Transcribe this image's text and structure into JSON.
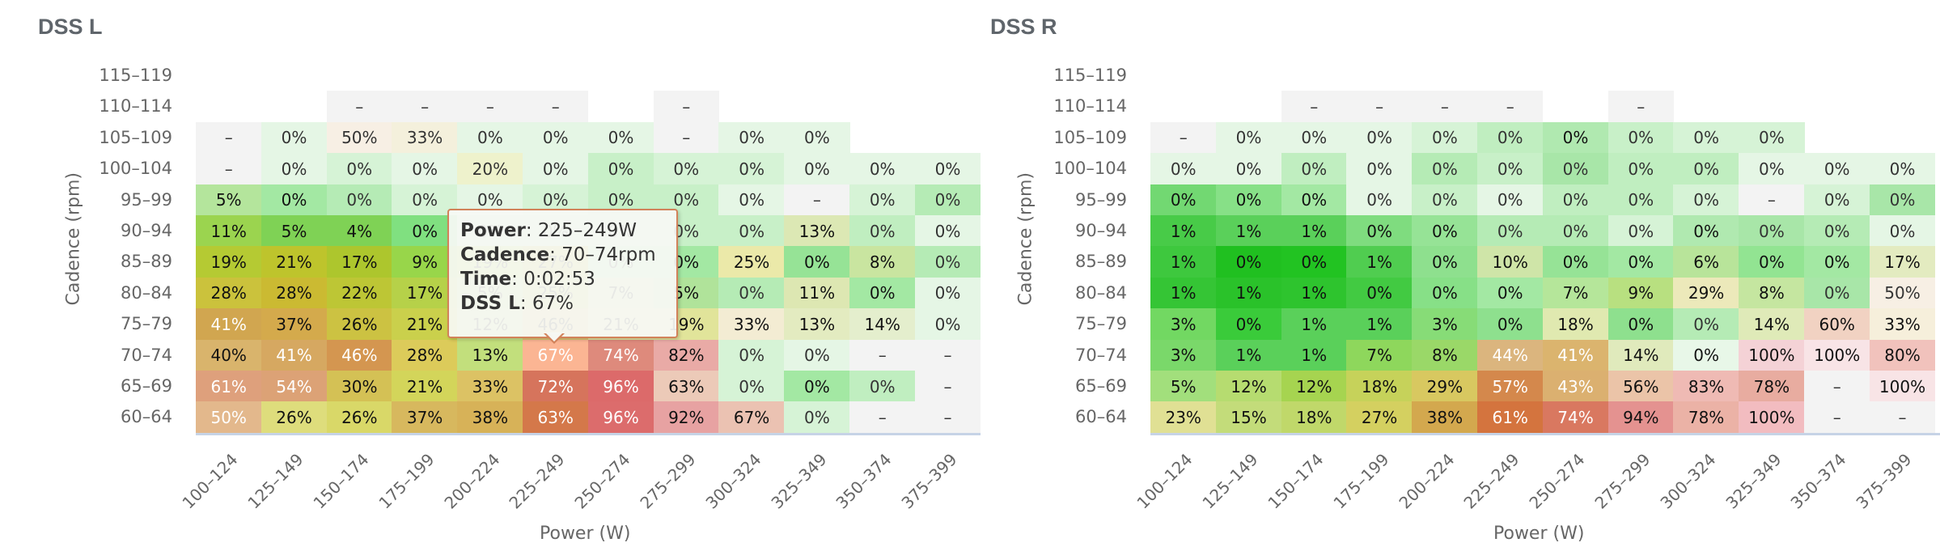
{
  "chart_data": [
    {
      "type": "heatmap",
      "title": "DSS L",
      "xlabel": "Power (W)",
      "ylabel": "Cadence (rpm)",
      "x_categories": [
        "100–124",
        "125–149",
        "150–174",
        "175–199",
        "200–224",
        "225–249",
        "250–274",
        "275–299",
        "300–324",
        "325–349",
        "350–374",
        "375–399"
      ],
      "y_categories": [
        "115–119",
        "110–114",
        "105–109",
        "100–104",
        "95–99",
        "90–94",
        "85–89",
        "80–84",
        "75–79",
        "70–74",
        "65–69",
        "60–64"
      ],
      "values": [
        [
          null,
          null,
          null,
          null,
          null,
          null,
          null,
          null,
          null,
          null,
          null,
          null
        ],
        [
          null,
          null,
          "–",
          "–",
          "–",
          "–",
          null,
          "–",
          null,
          null,
          null,
          null
        ],
        [
          "–",
          "0%",
          "50%",
          "33%",
          "0%",
          "0%",
          "0%",
          "–",
          "0%",
          "0%",
          null,
          null
        ],
        [
          "–",
          "0%",
          "0%",
          "0%",
          "20%",
          "0%",
          "0%",
          "0%",
          "0%",
          "0%",
          "0%",
          "0%"
        ],
        [
          "5%",
          "0%",
          "0%",
          "0%",
          "0%",
          "0%",
          "0%",
          "0%",
          "0%",
          "–",
          "0%",
          "0%"
        ],
        [
          "11%",
          "5%",
          "4%",
          "0%",
          "0%",
          "0%",
          "0%",
          "0%",
          "0%",
          "13%",
          "0%",
          "0%"
        ],
        [
          "19%",
          "21%",
          "17%",
          "9%",
          "19%",
          "27%",
          "0%",
          "0%",
          "25%",
          "0%",
          "8%",
          "0%"
        ],
        [
          "28%",
          "28%",
          "22%",
          "17%",
          "5%",
          "25%",
          "7%",
          "5%",
          "0%",
          "11%",
          "0%",
          "0%"
        ],
        [
          "41%",
          "37%",
          "26%",
          "21%",
          "12%",
          "46%",
          "21%",
          "19%",
          "33%",
          "13%",
          "14%",
          "0%"
        ],
        [
          "40%",
          "41%",
          "46%",
          "28%",
          "13%",
          "67%",
          "74%",
          "82%",
          "0%",
          "0%",
          "–",
          "–"
        ],
        [
          "61%",
          "54%",
          "30%",
          "21%",
          "33%",
          "72%",
          "96%",
          "63%",
          "0%",
          "0%",
          "0%",
          "–"
        ],
        [
          "50%",
          "26%",
          "26%",
          "37%",
          "38%",
          "63%",
          "96%",
          "92%",
          "67%",
          "0%",
          "–",
          "–"
        ]
      ],
      "colors": [
        [
          null,
          null,
          null,
          null,
          null,
          null,
          null,
          null,
          null,
          null,
          null,
          null
        ],
        [
          null,
          null,
          "#f3f3f3",
          "#f3f3f3",
          "#f3f3f3",
          "#f3f3f3",
          null,
          "#f3f3f3",
          null,
          null,
          null,
          null
        ],
        [
          "#f3f3f3",
          "#e5f6e5",
          "#f7efe4",
          "#f4f0dc",
          "#e5f6e5",
          "#e5f6e5",
          "#e5f6e5",
          "#f3f3f3",
          "#e5f6e5",
          "#e5f6e5",
          null,
          null
        ],
        [
          "#f3f3f3",
          "#e5f6e5",
          "#d6f3d6",
          "#e5f6e5",
          "#eef2cc",
          "#e5f6e5",
          "#c8f0c8",
          "#d6f3d6",
          "#d6f3d6",
          "#e5f6e5",
          "#e5f6e5",
          "#e5f6e5"
        ],
        [
          "#b4e59c",
          "#a3e8a3",
          "#b5ebb5",
          "#d6f3d6",
          "#e5f6e5",
          "#d6f3d6",
          "#c8f0c8",
          "#c8f0c8",
          "#e5f6e5",
          "#f3f3f3",
          "#d6f3d6",
          "#b5ebb5"
        ],
        [
          "#9bd44f",
          "#7fd255",
          "#7fd255",
          "#80e080",
          "#c8f0c8",
          "#c8f0c8",
          "#c8f0c8",
          "#c8f0c8",
          "#c8f0c8",
          "#dce8b4",
          "#c0eec0",
          "#e5f6e5"
        ],
        [
          "#b5ca33",
          "#bec42c",
          "#adc62d",
          "#98d64a",
          "#b0d84c",
          "#c2c840",
          "#a8e6a8",
          "#a3e8a3",
          "#ebe9a9",
          "#96e396",
          "#c9e5a0",
          "#b5ebb5"
        ],
        [
          "#cbc23c",
          "#cbba32",
          "#bdc635",
          "#b6d149",
          "#b5dc7a",
          "#c7cd5a",
          "#cfe29c",
          "#b0e39a",
          "#b5ebb5",
          "#dde7b2",
          "#a3e8a3",
          "#e5f6e5"
        ],
        [
          "#d1a650",
          "#d4aa4c",
          "#ccc242",
          "#cad04c",
          "#c7e08a",
          "#dbc472",
          "#e3e3a0",
          "#e1e49a",
          "#f3ecd3",
          "#e3ebc0",
          "#e4eecd",
          "#e5f6e5"
        ],
        [
          "#d9b46c",
          "#d6a861",
          "#d49650",
          "#dccb5a",
          "#c2df7c",
          "#fbb593",
          "#de8a7c",
          "#e9aaa6",
          "#d6f3d6",
          "#e5f6e5",
          "#f3f3f3",
          "#f3f3f3"
        ],
        [
          "#dea07c",
          "#dca276",
          "#d4c155",
          "#d3d55a",
          "#dcc264",
          "#d6745c",
          "#dc6a6a",
          "#eccab8",
          "#d6f3d6",
          "#a3e8a3",
          "#c0eec0",
          "#f3f3f3"
        ],
        [
          "#e3b88c",
          "#dedd7c",
          "#d9d868",
          "#d7b85e",
          "#d7b258",
          "#d4784a",
          "#dc6c6c",
          "#e7a2a2",
          "#ebc2b2",
          "#d6f3d6",
          "#f3f3f3",
          "#f3f3f3"
        ]
      ],
      "light_text": [
        [
          9,
          1
        ],
        [
          9,
          2
        ],
        [
          8,
          0
        ],
        [
          10,
          0
        ],
        [
          10,
          1
        ],
        [
          11,
          0
        ],
        [
          9,
          5
        ],
        [
          9,
          6
        ],
        [
          10,
          5
        ],
        [
          10,
          6
        ],
        [
          11,
          5
        ],
        [
          11,
          6
        ]
      ],
      "tooltip": {
        "power_label": "Power",
        "power_value": ": 225–249W",
        "cadence_label": "Cadence",
        "cadence_value": ": 70–74rpm",
        "time_label": "Time",
        "time_value": ": 0:02:53",
        "metric_label": "DSS L",
        "metric_value": ": 67%"
      }
    },
    {
      "type": "heatmap",
      "title": "DSS R",
      "xlabel": "Power (W)",
      "ylabel": "Cadence (rpm)",
      "x_categories": [
        "100–124",
        "125–149",
        "150–174",
        "175–199",
        "200–224",
        "225–249",
        "250–274",
        "275–299",
        "300–324",
        "325–349",
        "350–374",
        "375–399"
      ],
      "y_categories": [
        "115–119",
        "110–114",
        "105–109",
        "100–104",
        "95–99",
        "90–94",
        "85–89",
        "80–84",
        "75–79",
        "70–74",
        "65–69",
        "60–64"
      ],
      "values": [
        [
          null,
          null,
          null,
          null,
          null,
          null,
          null,
          null,
          null,
          null,
          null,
          null
        ],
        [
          null,
          null,
          "–",
          "–",
          "–",
          "–",
          null,
          "–",
          null,
          null,
          null,
          null
        ],
        [
          "–",
          "0%",
          "0%",
          "0%",
          "0%",
          "0%",
          "0%",
          "0%",
          "0%",
          "0%",
          null,
          null
        ],
        [
          "0%",
          "0%",
          "0%",
          "0%",
          "0%",
          "0%",
          "0%",
          "0%",
          "0%",
          "0%",
          "0%",
          "0%"
        ],
        [
          "0%",
          "0%",
          "0%",
          "0%",
          "0%",
          "0%",
          "0%",
          "0%",
          "0%",
          "–",
          "0%",
          "0%"
        ],
        [
          "1%",
          "1%",
          "1%",
          "0%",
          "0%",
          "0%",
          "0%",
          "0%",
          "0%",
          "0%",
          "0%",
          "0%"
        ],
        [
          "1%",
          "0%",
          "0%",
          "1%",
          "0%",
          "10%",
          "0%",
          "0%",
          "6%",
          "0%",
          "0%",
          "17%"
        ],
        [
          "1%",
          "1%",
          "1%",
          "0%",
          "0%",
          "0%",
          "7%",
          "9%",
          "29%",
          "8%",
          "0%",
          "50%"
        ],
        [
          "3%",
          "0%",
          "1%",
          "1%",
          "3%",
          "0%",
          "18%",
          "0%",
          "0%",
          "14%",
          "60%",
          "33%"
        ],
        [
          "3%",
          "1%",
          "1%",
          "7%",
          "8%",
          "44%",
          "41%",
          "14%",
          "0%",
          "100%",
          "100%",
          "80%"
        ],
        [
          "5%",
          "12%",
          "12%",
          "18%",
          "29%",
          "57%",
          "43%",
          "56%",
          "83%",
          "78%",
          "–",
          "100%"
        ],
        [
          "23%",
          "15%",
          "18%",
          "27%",
          "38%",
          "61%",
          "74%",
          "94%",
          "78%",
          "100%",
          "–",
          "–"
        ]
      ],
      "colors": [
        [
          null,
          null,
          null,
          null,
          null,
          null,
          null,
          null,
          null,
          null,
          null,
          null
        ],
        [
          null,
          null,
          "#f3f3f3",
          "#f3f3f3",
          "#f3f3f3",
          "#f3f3f3",
          null,
          "#f3f3f3",
          null,
          null,
          null,
          null
        ],
        [
          "#f3f3f3",
          "#e5f6e5",
          "#e5f6e5",
          "#e5f6e5",
          "#d6f3d6",
          "#c0eec0",
          "#b0e9b0",
          "#c8f0c8",
          "#d6f3d6",
          "#d6f3d6",
          null,
          null
        ],
        [
          "#e5f6e5",
          "#e5f6e5",
          "#c0eec0",
          "#e5f6e5",
          "#b5ebb5",
          "#c8f0c8",
          "#a8e6a8",
          "#c0eec0",
          "#c0eec0",
          "#e5f6e5",
          "#e5f6e5",
          "#e5f6e5"
        ],
        [
          "#72d872",
          "#87e087",
          "#a3e8a3",
          "#e5f6e5",
          "#c8f0c8",
          "#e5f6e5",
          "#c0eec0",
          "#c0eec0",
          "#d6f3d6",
          "#f3f3f3",
          "#d6f3d6",
          "#a8e6a8"
        ],
        [
          "#48cb48",
          "#5ad05a",
          "#5ad05a",
          "#7fdc7f",
          "#96e396",
          "#b5ebb5",
          "#b5ebb5",
          "#d6f3d6",
          "#b0e9b0",
          "#a8e6a8",
          "#b5ebb5",
          "#e5f6e5"
        ],
        [
          "#3ec83e",
          "#20c020",
          "#22c322",
          "#50cd50",
          "#8ee08e",
          "#cfe5a8",
          "#96e396",
          "#a3e8a3",
          "#b8e49a",
          "#92e492",
          "#a3e8a3",
          "#e3ebc0"
        ],
        [
          "#35c535",
          "#2ac22a",
          "#2ec42e",
          "#42ca42",
          "#87e087",
          "#a3e8a3",
          "#b5e69a",
          "#b8e080",
          "#ece9ba",
          "#c5e6a0",
          "#a8e6a8",
          "#f7efe4"
        ],
        [
          "#72d862",
          "#3acb3a",
          "#5ad05a",
          "#5ad05a",
          "#87dc77",
          "#8ee08e",
          "#e0e9b0",
          "#8ee08e",
          "#b5ebb5",
          "#dfeab8",
          "#f1d2c2",
          "#f6efdb"
        ],
        [
          "#7ad86a",
          "#5ad05a",
          "#5ad05a",
          "#8ed75c",
          "#9ad868",
          "#dbb57e",
          "#dbb46e",
          "#e0eabc",
          "#e8f7e8",
          "#f4d2d6",
          "#f8e4e6",
          "#f1c2bc"
        ],
        [
          "#a2df7c",
          "#b6dc70",
          "#a6d450",
          "#c6d25a",
          "#d8c860",
          "#d4884c",
          "#dbb070",
          "#ebc4a8",
          "#efbab4",
          "#e8aca0",
          "#f3f3f3",
          "#f8e4e6"
        ],
        [
          "#e0e094",
          "#c3dc7a",
          "#c0d86a",
          "#d4d060",
          "#d3a84e",
          "#d4743e",
          "#d97860",
          "#e49290",
          "#ebb2a6",
          "#f2bcc0",
          "#f3f3f3",
          "#f3f3f3"
        ]
      ],
      "light_text": [
        [
          9,
          5
        ],
        [
          9,
          6
        ],
        [
          10,
          5
        ],
        [
          10,
          6
        ],
        [
          11,
          5
        ],
        [
          11,
          6
        ]
      ]
    }
  ]
}
